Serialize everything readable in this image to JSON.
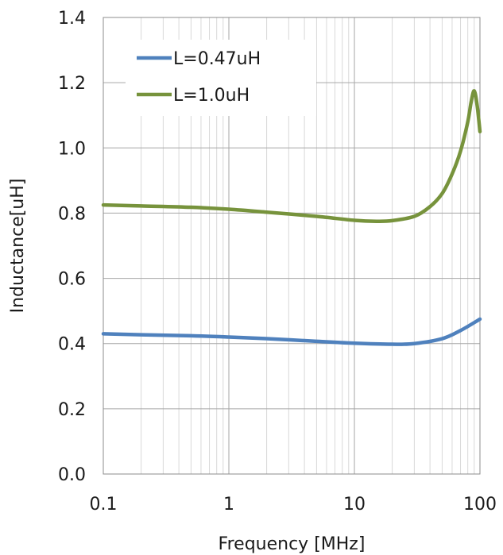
{
  "chart_data": {
    "type": "line",
    "xlabel": "Frequency [MHz]",
    "ylabel": "Inductance[uH]",
    "xscale": "log",
    "xlim": [
      0.1,
      100
    ],
    "ylim": [
      0.0,
      1.4
    ],
    "x_ticks": [
      "0.1",
      "1",
      "10",
      "100"
    ],
    "y_ticks": [
      "0.0",
      "0.2",
      "0.4",
      "0.6",
      "0.8",
      "1.0",
      "1.2",
      "1.4"
    ],
    "grid": true,
    "legend_position": "top-left",
    "series": [
      {
        "name": "L=0.47uH",
        "color": "#4F81BD",
        "x": [
          0.1,
          0.2,
          0.5,
          1,
          2,
          5,
          10,
          20,
          30,
          50,
          70,
          100
        ],
        "y": [
          0.43,
          0.427,
          0.424,
          0.42,
          0.415,
          0.407,
          0.401,
          0.398,
          0.4,
          0.415,
          0.44,
          0.475
        ]
      },
      {
        "name": "L=1.0uH",
        "color": "#77933C",
        "x": [
          0.1,
          0.2,
          0.5,
          1,
          2,
          5,
          10,
          15,
          20,
          30,
          40,
          50,
          60,
          70,
          80,
          85,
          90,
          95,
          100
        ],
        "y": [
          0.825,
          0.822,
          0.818,
          0.812,
          0.803,
          0.79,
          0.778,
          0.775,
          0.777,
          0.79,
          0.82,
          0.86,
          0.92,
          0.99,
          1.08,
          1.14,
          1.175,
          1.13,
          1.05
        ]
      }
    ]
  }
}
